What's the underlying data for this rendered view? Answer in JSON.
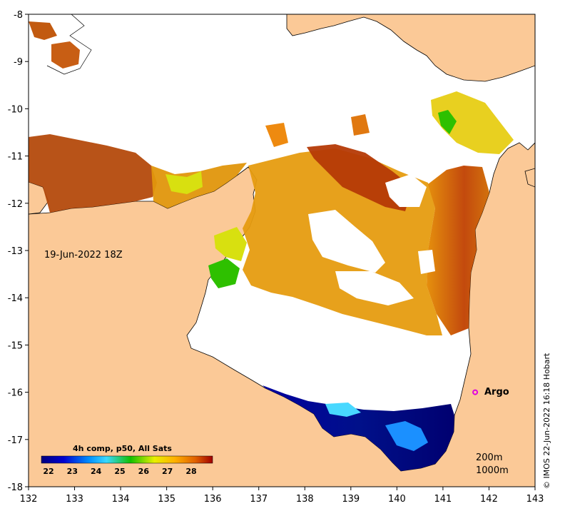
{
  "map": {
    "timestamp": "19-Jun-2022 18Z",
    "argo_label": "Argo",
    "depth_labels": [
      "200m",
      "1000m"
    ],
    "credit": "© IMOS 22-Jun-2022 16:18 Hobart",
    "x_ticks": [
      "132",
      "133",
      "134",
      "135",
      "136",
      "137",
      "138",
      "139",
      "140",
      "141",
      "142",
      "143"
    ],
    "y_ticks": [
      "-8",
      "-9",
      "-10",
      "-11",
      "-12",
      "-13",
      "-14",
      "-15",
      "-16",
      "-17",
      "-18"
    ],
    "lon_range": [
      132,
      143
    ],
    "lat_range": [
      -18,
      -8
    ],
    "argo_float": {
      "lon": 141.7,
      "lat": -16.0
    },
    "colors": {
      "land": "#fbc997",
      "ocean_nodata": "#ffffff",
      "argo_marker": "#e000e0"
    },
    "colorbar": {
      "title": "4h comp, p50, All Sats",
      "ticks": [
        "22",
        "23",
        "24",
        "25",
        "26",
        "27",
        "28"
      ],
      "range": [
        21.7,
        28.9
      ],
      "stops": [
        "#00007f",
        "#0000d0",
        "#0090ff",
        "#3ad8ff",
        "#12c000",
        "#e8f000",
        "#ffb000",
        "#e06000",
        "#a00000"
      ]
    }
  }
}
